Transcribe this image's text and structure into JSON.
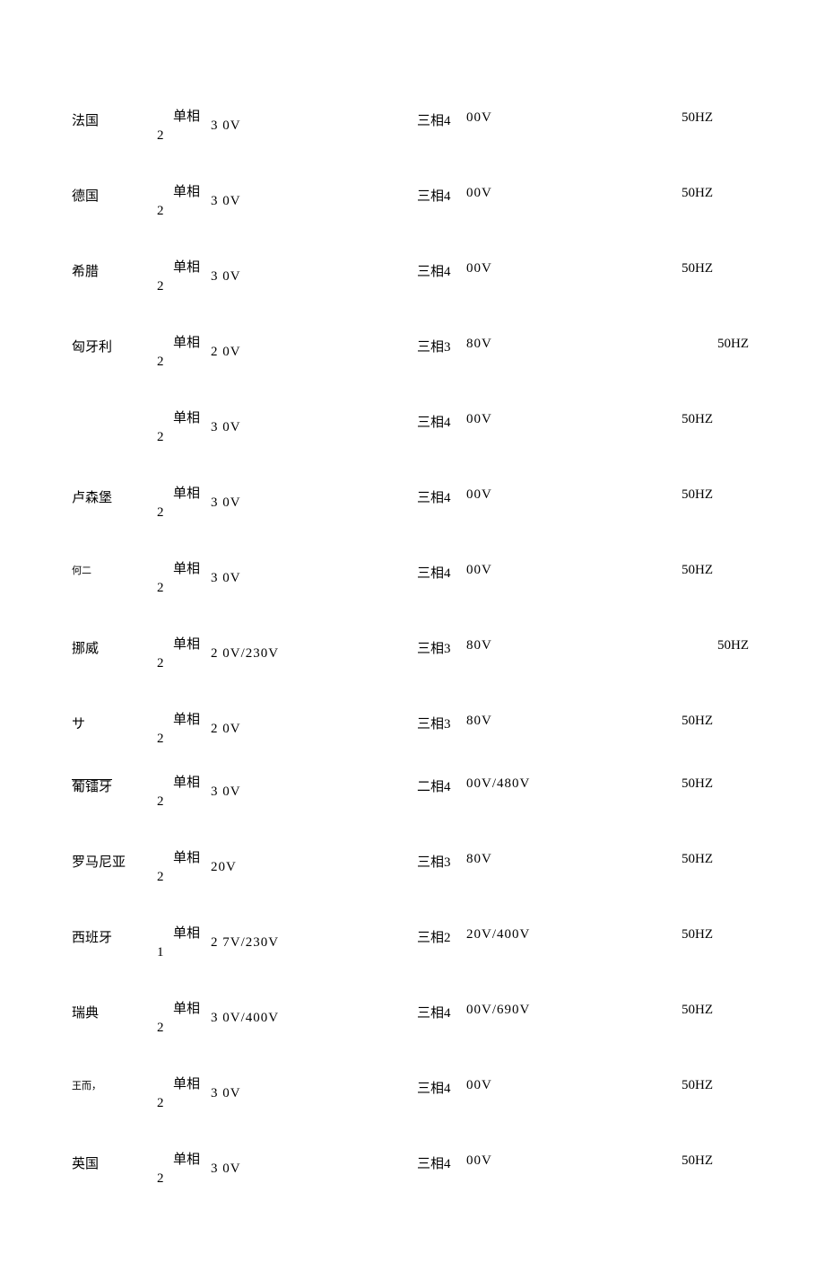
{
  "rows": [
    {
      "country": "法国",
      "phase_label": "单相",
      "phase_num": "2",
      "voltage1": "3 0V",
      "phase3": "三相4",
      "voltage2": "00V",
      "freq": "50HZ",
      "freq_indent": false,
      "country_small": false,
      "tight": false
    },
    {
      "country": "德国",
      "phase_label": "单相",
      "phase_num": "2",
      "voltage1": "3 0V",
      "phase3": "三相4",
      "voltage2": "00V",
      "freq": "50HZ",
      "freq_indent": false,
      "country_small": false,
      "tight": false
    },
    {
      "country": "希腊",
      "phase_label": "单相",
      "phase_num": "2",
      "voltage1": "3 0V",
      "phase3": "三相4",
      "voltage2": "00V",
      "freq": "50HZ",
      "freq_indent": false,
      "country_small": false,
      "tight": false
    },
    {
      "country": "匈牙利",
      "phase_label": "单相",
      "phase_num": "2",
      "voltage1": "2 0V",
      "phase3": "三相3",
      "voltage2": "80V",
      "freq": "50HZ",
      "freq_indent": true,
      "country_small": false,
      "tight": false
    },
    {
      "country": "",
      "phase_label": "单相",
      "phase_num": "2",
      "voltage1": "3 0V",
      "phase3": "三相4",
      "voltage2": "00V",
      "freq": "50HZ",
      "freq_indent": false,
      "country_small": false,
      "tight": false
    },
    {
      "country": "卢森堡",
      "phase_label": "单相",
      "phase_num": "2",
      "voltage1": "3 0V",
      "phase3": "三相4",
      "voltage2": "00V",
      "freq": "50HZ",
      "freq_indent": false,
      "country_small": false,
      "tight": false
    },
    {
      "country": "何二",
      "phase_label": "单相",
      "phase_num": "2",
      "voltage1": "3 0V",
      "phase3": "三相4",
      "voltage2": "00V",
      "freq": "50HZ",
      "freq_indent": false,
      "country_small": true,
      "tight": false
    },
    {
      "country": "挪威",
      "phase_label": "单相",
      "phase_num": "2",
      "voltage1": "2 0V/230V",
      "phase3": "三相3",
      "voltage2": "80V",
      "freq": "50HZ",
      "freq_indent": true,
      "country_small": false,
      "tight": false
    },
    {
      "country": "サ",
      "phase_label": "单相",
      "phase_num": "2",
      "voltage1": "2 0V",
      "phase3": "三相3",
      "voltage2": "80V",
      "freq": "50HZ",
      "freq_indent": false,
      "country_small": false,
      "tight": true
    },
    {
      "country": "葡镭牙",
      "phase_label": "单相",
      "phase_num": "2",
      "voltage1": "3 0V",
      "phase3": "二相4",
      "voltage2": "00V/480V",
      "freq": "50HZ",
      "freq_indent": false,
      "country_small": false,
      "overline": true,
      "tight": false
    },
    {
      "country": "罗马尼亚",
      "phase_label": "单相",
      "phase_num": "2",
      "voltage1": "20V",
      "phase3": "三相3",
      "voltage2": "80V",
      "freq": "50HZ",
      "freq_indent": false,
      "country_small": false,
      "tight": false
    },
    {
      "country": "西班牙",
      "phase_label": "单相",
      "phase_num": "1",
      "voltage1": "2 7V/230V",
      "phase3": "三相2",
      "voltage2": "20V/400V",
      "freq": "50HZ",
      "freq_indent": false,
      "country_small": false,
      "tight": false
    },
    {
      "country": "瑞典",
      "phase_label": "单相",
      "phase_num": "2",
      "voltage1": "3 0V/400V",
      "phase3": "三相4",
      "voltage2": "00V/690V",
      "freq": "50HZ",
      "freq_indent": false,
      "country_small": false,
      "tight": false
    },
    {
      "country": "王而，",
      "phase_label": "单相",
      "phase_num": "2",
      "voltage1": "3 0V",
      "phase3": "三相4",
      "voltage2": "00V",
      "freq": "50HZ",
      "freq_indent": false,
      "country_small": true,
      "tight": false
    },
    {
      "country": "英国",
      "phase_label": "单相",
      "phase_num": "2",
      "voltage1": "3 0V",
      "phase3": "三相4",
      "voltage2": "00V",
      "freq": "50HZ",
      "freq_indent": false,
      "country_small": false,
      "tight": false
    }
  ]
}
